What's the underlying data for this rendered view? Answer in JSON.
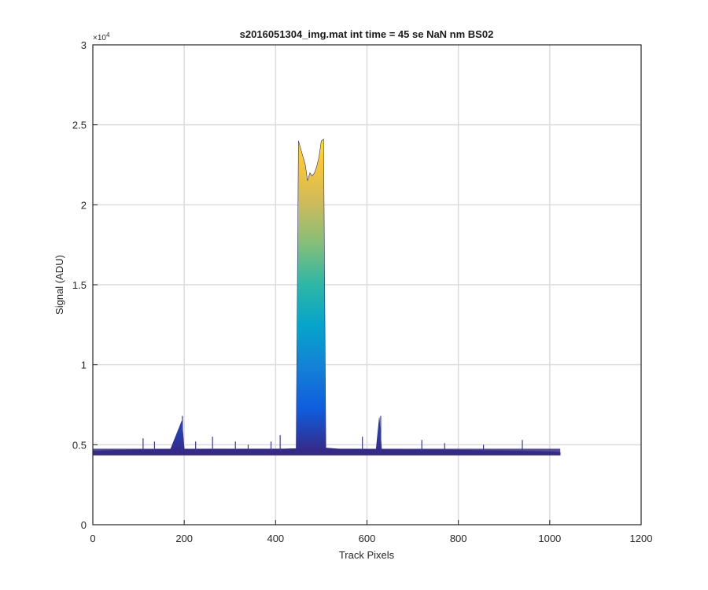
{
  "chart_data": {
    "type": "area",
    "title": "s2016051304_img.mat int time = 45 se  NaN nm BS02",
    "xlabel": "Track Pixels",
    "ylabel": "Signal (ADU)",
    "xlim": [
      0,
      1200
    ],
    "ylim": [
      0,
      30000
    ],
    "y_multiplier_label": "×10",
    "y_multiplier_exponent": "4",
    "x_ticks": [
      0,
      200,
      400,
      600,
      800,
      1000,
      1200
    ],
    "x_tick_labels": [
      "0",
      "200",
      "400",
      "600",
      "800",
      "1000",
      "1200"
    ],
    "y_ticks": [
      0,
      5000,
      10000,
      15000,
      20000,
      25000,
      30000
    ],
    "y_tick_labels": [
      "0",
      "0.5",
      "1",
      "1.5",
      "2",
      "2.5",
      "3"
    ],
    "grid": true,
    "colormap": "parula",
    "colors": [
      "#352a87",
      "#0f5cdd",
      "#1481d6",
      "#06a4ca",
      "#2eb7a4",
      "#87bf77",
      "#d1bb59",
      "#fec832",
      "#f9fb0e"
    ],
    "baseline": 4600,
    "series": [
      {
        "x": [
          0,
          20,
          50,
          80,
          110,
          140,
          170,
          195,
          200,
          230,
          260,
          300,
          340,
          380,
          420,
          445,
          450,
          455,
          460,
          465,
          470,
          475,
          480,
          485,
          490,
          495,
          500,
          505,
          510,
          540,
          580,
          620,
          627,
          632,
          660,
          700,
          740,
          780,
          820,
          860,
          900,
          940,
          980,
          1000,
          1020,
          1023
        ],
        "values": [
          4600,
          4620,
          4650,
          4670,
          4690,
          4700,
          4710,
          6500,
          4720,
          4720,
          4730,
          4730,
          4730,
          4730,
          4740,
          4760,
          24000,
          23500,
          23000,
          22500,
          21500,
          22000,
          21800,
          22000,
          22400,
          23000,
          24000,
          24100,
          4800,
          4730,
          4720,
          4700,
          6700,
          4700,
          4690,
          4680,
          4680,
          4670,
          4650,
          4640,
          4620,
          4600,
          4580,
          4560,
          4540,
          4520
        ]
      }
    ],
    "spikes": [
      {
        "x": 110,
        "y": 5400
      },
      {
        "x": 135,
        "y": 5200
      },
      {
        "x": 196,
        "y": 6800
      },
      {
        "x": 225,
        "y": 5200
      },
      {
        "x": 262,
        "y": 5500
      },
      {
        "x": 312,
        "y": 5200
      },
      {
        "x": 340,
        "y": 5000
      },
      {
        "x": 390,
        "y": 5200
      },
      {
        "x": 410,
        "y": 5600
      },
      {
        "x": 590,
        "y": 5500
      },
      {
        "x": 630,
        "y": 6800
      },
      {
        "x": 720,
        "y": 5300
      },
      {
        "x": 770,
        "y": 5100
      },
      {
        "x": 855,
        "y": 5000
      },
      {
        "x": 940,
        "y": 5300
      }
    ]
  }
}
